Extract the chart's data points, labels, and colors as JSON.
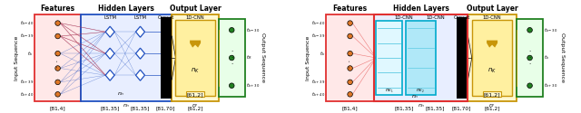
{
  "figsize": [
    6.4,
    1.25
  ],
  "dpi": 100,
  "colors": {
    "red_box": "#e03030",
    "blue_box": "#2050c0",
    "cyan_box": "#00aacc",
    "yellow_box": "#c8960a",
    "green_box": "#208020",
    "orange_node": "#e07828",
    "green_node": "#208020",
    "black": "#000000",
    "bg": "#ffffff",
    "red_fill": "#ffe8e8",
    "blue_fill": "#e8eeff",
    "cyan_fill": "#e0f8ff",
    "yellow_fill": "#fff8d0",
    "green_fill": "#e8ffe8",
    "lstm_line": "#2050c0",
    "red_line": "#e03030"
  },
  "left_bottom": [
    "[81,4]",
    "[81,35]",
    "[81,35]",
    "[81,70]",
    "[61,2]"
  ],
  "right_bottom": [
    "[81,4]",
    "[81,35]",
    "[81,35]",
    "[81,70]",
    "[61,2]"
  ],
  "left_input_labels": [
    "t_{k-40}",
    "t_{k-39}",
    "t_k",
    "t_{k+39}",
    "t_{k+40}"
  ],
  "left_output_labels": [
    "t_{k-30}",
    "t_R",
    "t_{k+30}"
  ],
  "right_input_labels": [
    "t_{k-40}",
    "t_{k-39}",
    "t_k",
    "t_{k+39}",
    "t_{k+40}"
  ],
  "right_output_labels": [
    "t_{k-30}",
    "t_k",
    "t_{k+30}"
  ]
}
